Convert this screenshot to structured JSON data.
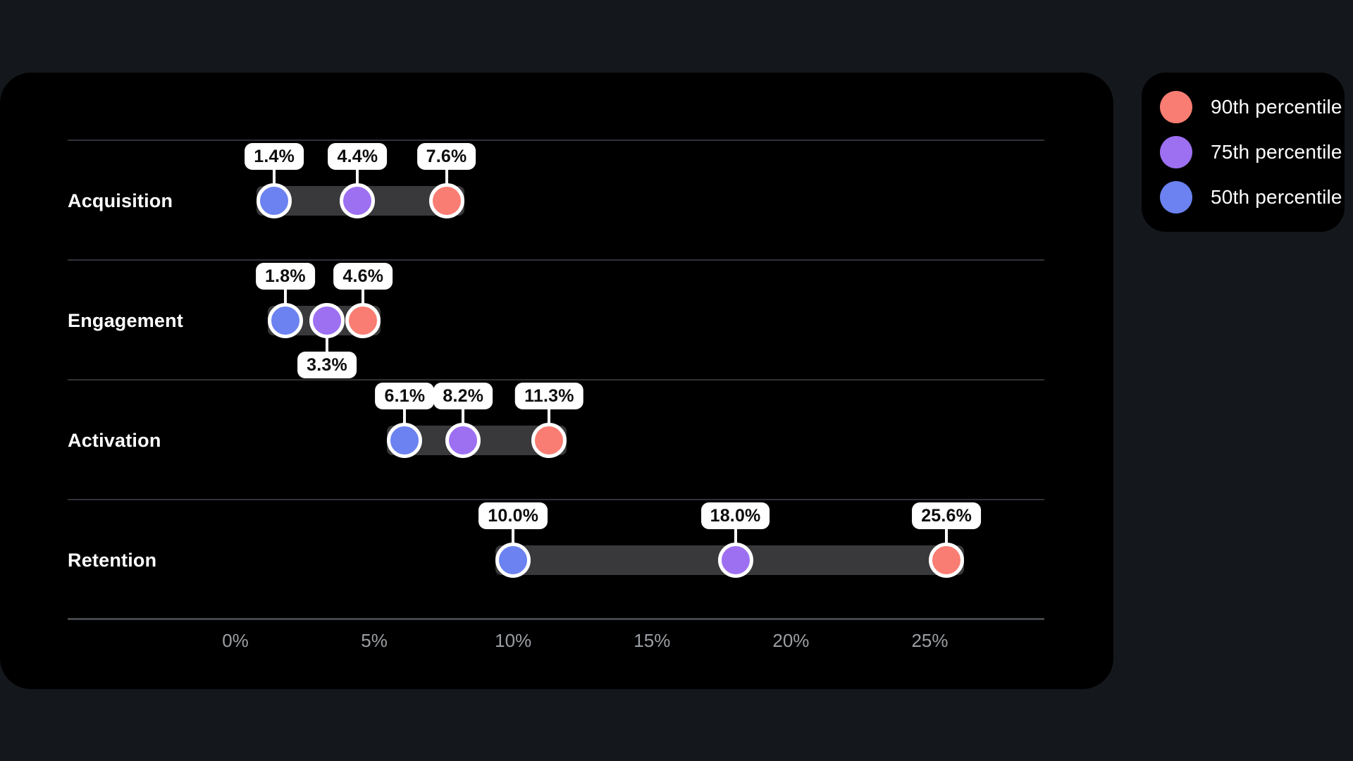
{
  "page": {
    "background": "#14171c"
  },
  "card": {
    "background": "#000000",
    "divider_color": "#2f3236",
    "axis_line_color": "#43474b"
  },
  "tooltip": {
    "background": "#ffffff",
    "text_color": "#0d0d0d"
  },
  "legend": {
    "background": "#000000",
    "text_color": "#ffffff",
    "items": [
      {
        "label": "90th percentile",
        "color": "#f97d72"
      },
      {
        "label": "75th percentile",
        "color": "#9d70f2"
      },
      {
        "label": "50th percentile",
        "color": "#6b82f0"
      }
    ]
  },
  "chart_data": {
    "type": "scatter",
    "subtype": "horizontal-percentile-dot-range",
    "categories": [
      "Acquisition",
      "Engagement",
      "Activation",
      "Retention"
    ],
    "category_text_color": "#ffffff",
    "series": [
      {
        "name": "50th percentile",
        "color": "#6b82f0",
        "values": [
          1.4,
          1.8,
          6.1,
          10.0
        ],
        "labels": [
          "1.4%",
          "1.8%",
          "6.1%",
          "10.0%"
        ]
      },
      {
        "name": "75th percentile",
        "color": "#9d70f2",
        "values": [
          4.4,
          3.3,
          8.2,
          18.0
        ],
        "labels": [
          "4.4%",
          "3.3%",
          "8.2%",
          "18.0%"
        ]
      },
      {
        "name": "90th percentile",
        "color": "#f97d72",
        "values": [
          7.6,
          4.6,
          11.3,
          25.6
        ],
        "labels": [
          "7.6%",
          "4.6%",
          "11.3%",
          "25.6%"
        ]
      }
    ],
    "label_positions": [
      [
        "above",
        "above",
        "above"
      ],
      [
        "above",
        "below",
        "above"
      ],
      [
        "above",
        "above",
        "above"
      ],
      [
        "above",
        "above",
        "above"
      ]
    ],
    "range_band": {
      "from_series": "50th percentile",
      "to_series": "90th percentile",
      "color": "#39393b"
    },
    "x_axis": {
      "tick_color": "#9c9fa3",
      "range_pct": [
        -6,
        29.1
      ],
      "ticks": [
        {
          "value": 0,
          "label": "0%"
        },
        {
          "value": 5,
          "label": "5%"
        },
        {
          "value": 10,
          "label": "10%"
        },
        {
          "value": 15,
          "label": "15%"
        },
        {
          "value": 20,
          "label": "20%"
        },
        {
          "value": 25,
          "label": "25%"
        }
      ]
    },
    "legend_position": "top-right-outside",
    "grid": "row-dividers-only"
  }
}
